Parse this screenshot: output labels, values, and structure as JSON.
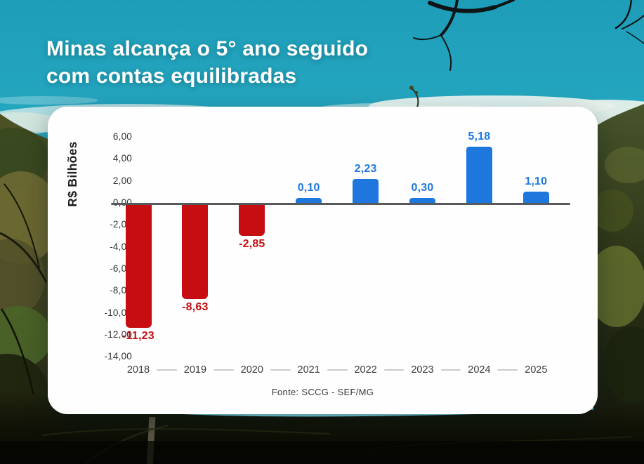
{
  "title": {
    "line1_regular": "Minas alcança o ",
    "line1_bold": "5° ano seguido",
    "line2_regular": "com ",
    "line2_bold": "contas equilibradas"
  },
  "chart_data": {
    "type": "bar",
    "title": "Minas alcança o 5° ano seguido com contas equilibradas",
    "ylabel": "R$ Bilhões",
    "xlabel": "",
    "categories": [
      "2018",
      "2019",
      "2020",
      "2021",
      "2022",
      "2023",
      "2024",
      "2025"
    ],
    "values": [
      -11.23,
      -8.63,
      -2.85,
      0.1,
      2.23,
      0.3,
      5.18,
      1.1
    ],
    "value_labels": [
      "-11,23",
      "-8,63",
      "-2,85",
      "0,10",
      "2,23",
      "0,30",
      "5,18",
      "1,10"
    ],
    "yticks": [
      6,
      4,
      2,
      0,
      -2,
      -4,
      -6,
      -8,
      -10,
      -12,
      -14
    ],
    "ytick_labels": [
      "6,00",
      "4,00",
      "2,00",
      "0,00",
      "-2,00",
      "-4,00",
      "-6,00",
      "-8,00",
      "-10,00",
      "-12,00",
      "-14,00"
    ],
    "ylim": [
      -14,
      6
    ],
    "grid": "off",
    "legend": "none",
    "source": "Fonte: SCCG - SEF/MG",
    "colors": {
      "positive_bar": "#1e77dd",
      "negative_bar": "#c60d12",
      "positive_label": "#1e77dd",
      "negative_label": "#c60d12",
      "axis_line": "#58595b",
      "tick_text": "#333333"
    }
  }
}
